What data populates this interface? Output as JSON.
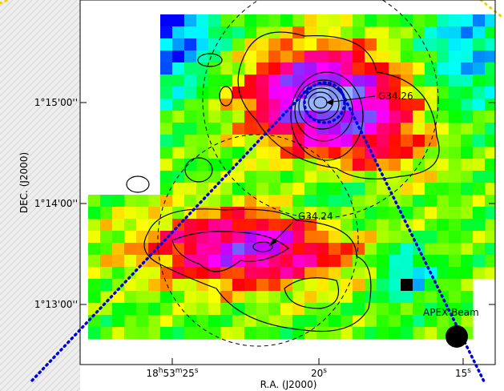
{
  "figure": {
    "y_tick_labels": [
      "1°15'00''",
      "1°14'00''",
      "1°13'00''"
    ],
    "x_tick_labels": [
      [
        "18",
        "h",
        "53",
        "m",
        "25",
        "s"
      ],
      [
        "20",
        "s"
      ],
      [
        "15",
        "s"
      ]
    ],
    "x_axis_label": "R.A. (J2000)",
    "y_axis_label": "DEC. (J2000)",
    "annotations": [
      "G34.26",
      "G34.24",
      "APEX Beam"
    ]
  }
}
